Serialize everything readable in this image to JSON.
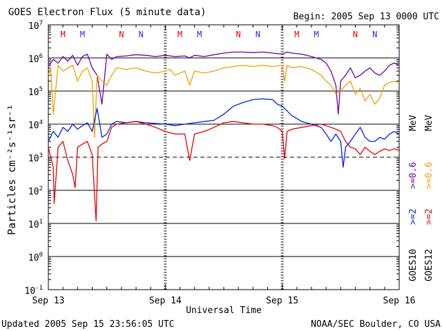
{
  "chart_data": {
    "type": "line",
    "title": "GOES Electron Flux (5 minute data)",
    "begin_label": "Begin: 2005 Sep 13 0000 UTC",
    "xlabel": "Universal Time",
    "ylabel": "Particles cm⁻²s⁻¹sr⁻¹",
    "footer_left": "Updated 2005 Sep 15 23:56:05 UTC",
    "footer_right": "NOAA/SEC Boulder, CO USA",
    "y_scale": "log",
    "ylim": [
      0.1,
      10000000
    ],
    "y_ticks": [
      {
        "base": "10",
        "exp": "7"
      },
      {
        "base": "10",
        "exp": "6"
      },
      {
        "base": "10",
        "exp": "5"
      },
      {
        "base": "10",
        "exp": "4"
      },
      {
        "base": "10",
        "exp": "3"
      },
      {
        "base": "10",
        "exp": "2"
      },
      {
        "base": "10",
        "exp": "1"
      },
      {
        "base": "10",
        "exp": "0"
      },
      {
        "base": "10",
        "exp": "-1"
      }
    ],
    "x_range_hours": [
      0,
      72
    ],
    "x_ticks": [
      {
        "label": "Sep 13",
        "hour": 0
      },
      {
        "label": "Sep 14",
        "hour": 24
      },
      {
        "label": "Sep 15",
        "hour": 48
      },
      {
        "label": "Sep 16",
        "hour": 72
      }
    ],
    "threshold_line": 1000,
    "right_labels": {
      "goes10": "GOES10",
      "goes12": "GOES12",
      "ch1": ">=2",
      "ch2": ">=0.6",
      "unit": "MeV"
    },
    "local_time_markers": [
      {
        "label": "M",
        "hour": 3.0,
        "color": "#e00000"
      },
      {
        "label": "M",
        "hour": 7.0,
        "color": "#2030d0"
      },
      {
        "label": "N",
        "hour": 15.0,
        "color": "#e00000"
      },
      {
        "label": "N",
        "hour": 19.0,
        "color": "#2030d0"
      },
      {
        "label": "M",
        "hour": 27.0,
        "color": "#e00000"
      },
      {
        "label": "M",
        "hour": 31.0,
        "color": "#2030d0"
      },
      {
        "label": "N",
        "hour": 39.0,
        "color": "#e00000"
      },
      {
        "label": "N",
        "hour": 43.0,
        "color": "#2030d0"
      },
      {
        "label": "M",
        "hour": 51.0,
        "color": "#e00000"
      },
      {
        "label": "M",
        "hour": 55.0,
        "color": "#2030d0"
      },
      {
        "label": "N",
        "hour": 63.0,
        "color": "#e00000"
      },
      {
        "label": "N",
        "hour": 67.0,
        "color": "#2030d0"
      }
    ],
    "series": [
      {
        "color": "#6a00a0",
        "points": [
          [
            0,
            550000.0
          ],
          [
            1,
            900000.0
          ],
          [
            2,
            700000.0
          ],
          [
            3,
            1100000.0
          ],
          [
            4,
            800000.0
          ],
          [
            5,
            1200000.0
          ],
          [
            6,
            600000.0
          ],
          [
            7,
            1100000.0
          ],
          [
            8,
            1300000.0
          ],
          [
            9,
            500000.0
          ],
          [
            10,
            300000.0
          ],
          [
            11,
            40000.0
          ],
          [
            12,
            1300000.0
          ],
          [
            13,
            900000.0
          ],
          [
            14,
            1100000.0
          ],
          [
            16,
            1150000.0
          ],
          [
            18,
            1250000.0
          ],
          [
            20,
            1200000.0
          ],
          [
            22,
            1100000.0
          ],
          [
            24,
            1200000.0
          ],
          [
            26,
            1100000.0
          ],
          [
            28,
            1150000.0
          ],
          [
            29,
            1000000.0
          ],
          [
            30,
            1200000.0
          ],
          [
            32,
            1100000.0
          ],
          [
            34,
            1250000.0
          ],
          [
            36,
            1400000.0
          ],
          [
            38,
            1500000.0
          ],
          [
            40,
            1500000.0
          ],
          [
            42,
            1450000.0
          ],
          [
            44,
            1500000.0
          ],
          [
            46,
            1400000.0
          ],
          [
            48,
            1300000.0
          ],
          [
            49,
            1500000.0
          ],
          [
            50,
            1400000.0
          ],
          [
            52,
            1300000.0
          ],
          [
            54,
            1100000.0
          ],
          [
            56,
            900000.0
          ],
          [
            57,
            700000.0
          ],
          [
            58,
            400000.0
          ],
          [
            59,
            150000.0
          ],
          [
            59.5,
            20000.0
          ],
          [
            60,
            200000.0
          ],
          [
            61,
            300000.0
          ],
          [
            62,
            500000.0
          ],
          [
            63,
            250000.0
          ],
          [
            64,
            300000.0
          ],
          [
            65,
            400000.0
          ],
          [
            66,
            500000.0
          ],
          [
            67,
            350000.0
          ],
          [
            68,
            300000.0
          ],
          [
            69,
            400000.0
          ],
          [
            70,
            600000.0
          ],
          [
            71,
            700000.0
          ],
          [
            72,
            600000.0
          ]
        ]
      },
      {
        "color": "#f0a000",
        "points": [
          [
            0,
            300000.0
          ],
          [
            0.5,
            500000.0
          ],
          [
            1,
            20000.0
          ],
          [
            2,
            600000.0
          ],
          [
            3,
            400000.0
          ],
          [
            4,
            500000.0
          ],
          [
            5,
            600000.0
          ],
          [
            6,
            200000.0
          ],
          [
            7,
            400000.0
          ],
          [
            8,
            500000.0
          ],
          [
            9,
            200000.0
          ],
          [
            9.5,
            4000.0
          ],
          [
            10,
            300000.0
          ],
          [
            11,
            200000.0
          ],
          [
            12,
            150000.0
          ],
          [
            13,
            300000.0
          ],
          [
            14,
            500000.0
          ],
          [
            16,
            450000.0
          ],
          [
            18,
            500000.0
          ],
          [
            20,
            400000.0
          ],
          [
            22,
            350000.0
          ],
          [
            24,
            400000.0
          ],
          [
            25,
            450000.0
          ],
          [
            26,
            300000.0
          ],
          [
            28,
            400000.0
          ],
          [
            29,
            150000.0
          ],
          [
            30,
            400000.0
          ],
          [
            32,
            350000.0
          ],
          [
            34,
            400000.0
          ],
          [
            36,
            500000.0
          ],
          [
            38,
            550000.0
          ],
          [
            40,
            600000.0
          ],
          [
            42,
            550000.0
          ],
          [
            44,
            600000.0
          ],
          [
            46,
            550000.0
          ],
          [
            48,
            600000.0
          ],
          [
            48.5,
            200000.0
          ],
          [
            49,
            600000.0
          ],
          [
            50,
            500000.0
          ],
          [
            52,
            550000.0
          ],
          [
            54,
            450000.0
          ],
          [
            56,
            300000.0
          ],
          [
            57,
            200000.0
          ],
          [
            58,
            150000.0
          ],
          [
            59,
            80000.0
          ],
          [
            60,
            100000.0
          ],
          [
            61,
            150000.0
          ],
          [
            62,
            200000.0
          ],
          [
            63,
            80000.0
          ],
          [
            64,
            120000.0
          ],
          [
            65,
            50000.0
          ],
          [
            66,
            80000.0
          ],
          [
            67,
            40000.0
          ],
          [
            68,
            60000.0
          ],
          [
            69,
            150000.0
          ],
          [
            70,
            180000.0
          ],
          [
            71,
            200000.0
          ],
          [
            72,
            180000.0
          ]
        ]
      },
      {
        "color": "#0020e0",
        "points": [
          [
            0,
            3000.0
          ],
          [
            1,
            6000.0
          ],
          [
            2,
            4000.0
          ],
          [
            3,
            8000.0
          ],
          [
            4,
            6000.0
          ],
          [
            5,
            10000.0
          ],
          [
            6,
            7000.0
          ],
          [
            7,
            9000.0
          ],
          [
            8,
            11000.0
          ],
          [
            9,
            6000.0
          ],
          [
            10,
            30000.0
          ],
          [
            11,
            4000.0
          ],
          [
            12,
            5000.0
          ],
          [
            13,
            10000.0
          ],
          [
            14,
            12000.0
          ],
          [
            16,
            11000.0
          ],
          [
            18,
            12000.0
          ],
          [
            20,
            11000.0
          ],
          [
            22,
            10500.0
          ],
          [
            24,
            10000.0
          ],
          [
            26,
            9000.0
          ],
          [
            28,
            10000.0
          ],
          [
            30,
            11000.0
          ],
          [
            32,
            12000.0
          ],
          [
            34,
            13000.0
          ],
          [
            36,
            20000.0
          ],
          [
            38,
            35000.0
          ],
          [
            40,
            45000.0
          ],
          [
            42,
            55000.0
          ],
          [
            44,
            58000.0
          ],
          [
            46,
            55000.0
          ],
          [
            47,
            40000.0
          ],
          [
            48,
            35000.0
          ],
          [
            49,
            25000.0
          ],
          [
            50,
            18000.0
          ],
          [
            52,
            12000.0
          ],
          [
            54,
            10000.0
          ],
          [
            56,
            8000.0
          ],
          [
            57,
            5000.0
          ],
          [
            58,
            3000.0
          ],
          [
            59,
            5000.0
          ],
          [
            60,
            3000.0
          ],
          [
            60.5,
            500.0
          ],
          [
            61,
            2000.0
          ],
          [
            62,
            3000.0
          ],
          [
            63,
            5000.0
          ],
          [
            64,
            8000.0
          ],
          [
            65,
            4000.0
          ],
          [
            66,
            3000.0
          ],
          [
            67,
            3000.0
          ],
          [
            68,
            4000.0
          ],
          [
            69,
            3500.0
          ],
          [
            70,
            5000.0
          ],
          [
            71,
            6000.0
          ],
          [
            72,
            5000.0
          ]
        ]
      },
      {
        "color": "#e00000",
        "points": [
          [
            0,
            2000.0
          ],
          [
            1,
            500.0
          ],
          [
            1.2,
            40
          ],
          [
            2,
            2000.0
          ],
          [
            3,
            3000.0
          ],
          [
            4,
            800.0
          ],
          [
            5,
            300.0
          ],
          [
            5.5,
            120.0
          ],
          [
            6,
            2000.0
          ],
          [
            7,
            2500.0
          ],
          [
            8,
            3000.0
          ],
          [
            9,
            1200.0
          ],
          [
            9.8,
            12
          ],
          [
            10.2,
            2000.0
          ],
          [
            11,
            2500.0
          ],
          [
            12,
            3000.0
          ],
          [
            13,
            8000.0
          ],
          [
            14,
            10000.0
          ],
          [
            16,
            11000.0
          ],
          [
            18,
            12000.0
          ],
          [
            20,
            10000.0
          ],
          [
            22,
            8000.0
          ],
          [
            24,
            6000.0
          ],
          [
            26,
            5000.0
          ],
          [
            28,
            5000.0
          ],
          [
            29,
            800.0
          ],
          [
            30,
            5000.0
          ],
          [
            32,
            6000.0
          ],
          [
            34,
            8000.0
          ],
          [
            36,
            11000.0
          ],
          [
            38,
            12000.0
          ],
          [
            40,
            11000.0
          ],
          [
            42,
            10000.0
          ],
          [
            44,
            10000.0
          ],
          [
            46,
            9000.0
          ],
          [
            47,
            8000.0
          ],
          [
            48,
            6000.0
          ],
          [
            48.5,
            900.0
          ],
          [
            49,
            6000.0
          ],
          [
            50,
            7000.0
          ],
          [
            52,
            8000.0
          ],
          [
            54,
            9000.0
          ],
          [
            56,
            10000.0
          ],
          [
            57,
            9000.0
          ],
          [
            58,
            8000.0
          ],
          [
            59,
            7000.0
          ],
          [
            60,
            6000.0
          ],
          [
            61,
            3000.0
          ],
          [
            62,
            2000.0
          ],
          [
            63,
            1800.0
          ],
          [
            64,
            1200.0
          ],
          [
            65,
            2000.0
          ],
          [
            66,
            1500.0
          ],
          [
            67,
            1200.0
          ],
          [
            68,
            1500.0
          ],
          [
            69,
            1800.0
          ],
          [
            70,
            1600.0
          ],
          [
            71,
            1800.0
          ],
          [
            72,
            1600.0
          ]
        ]
      }
    ]
  }
}
